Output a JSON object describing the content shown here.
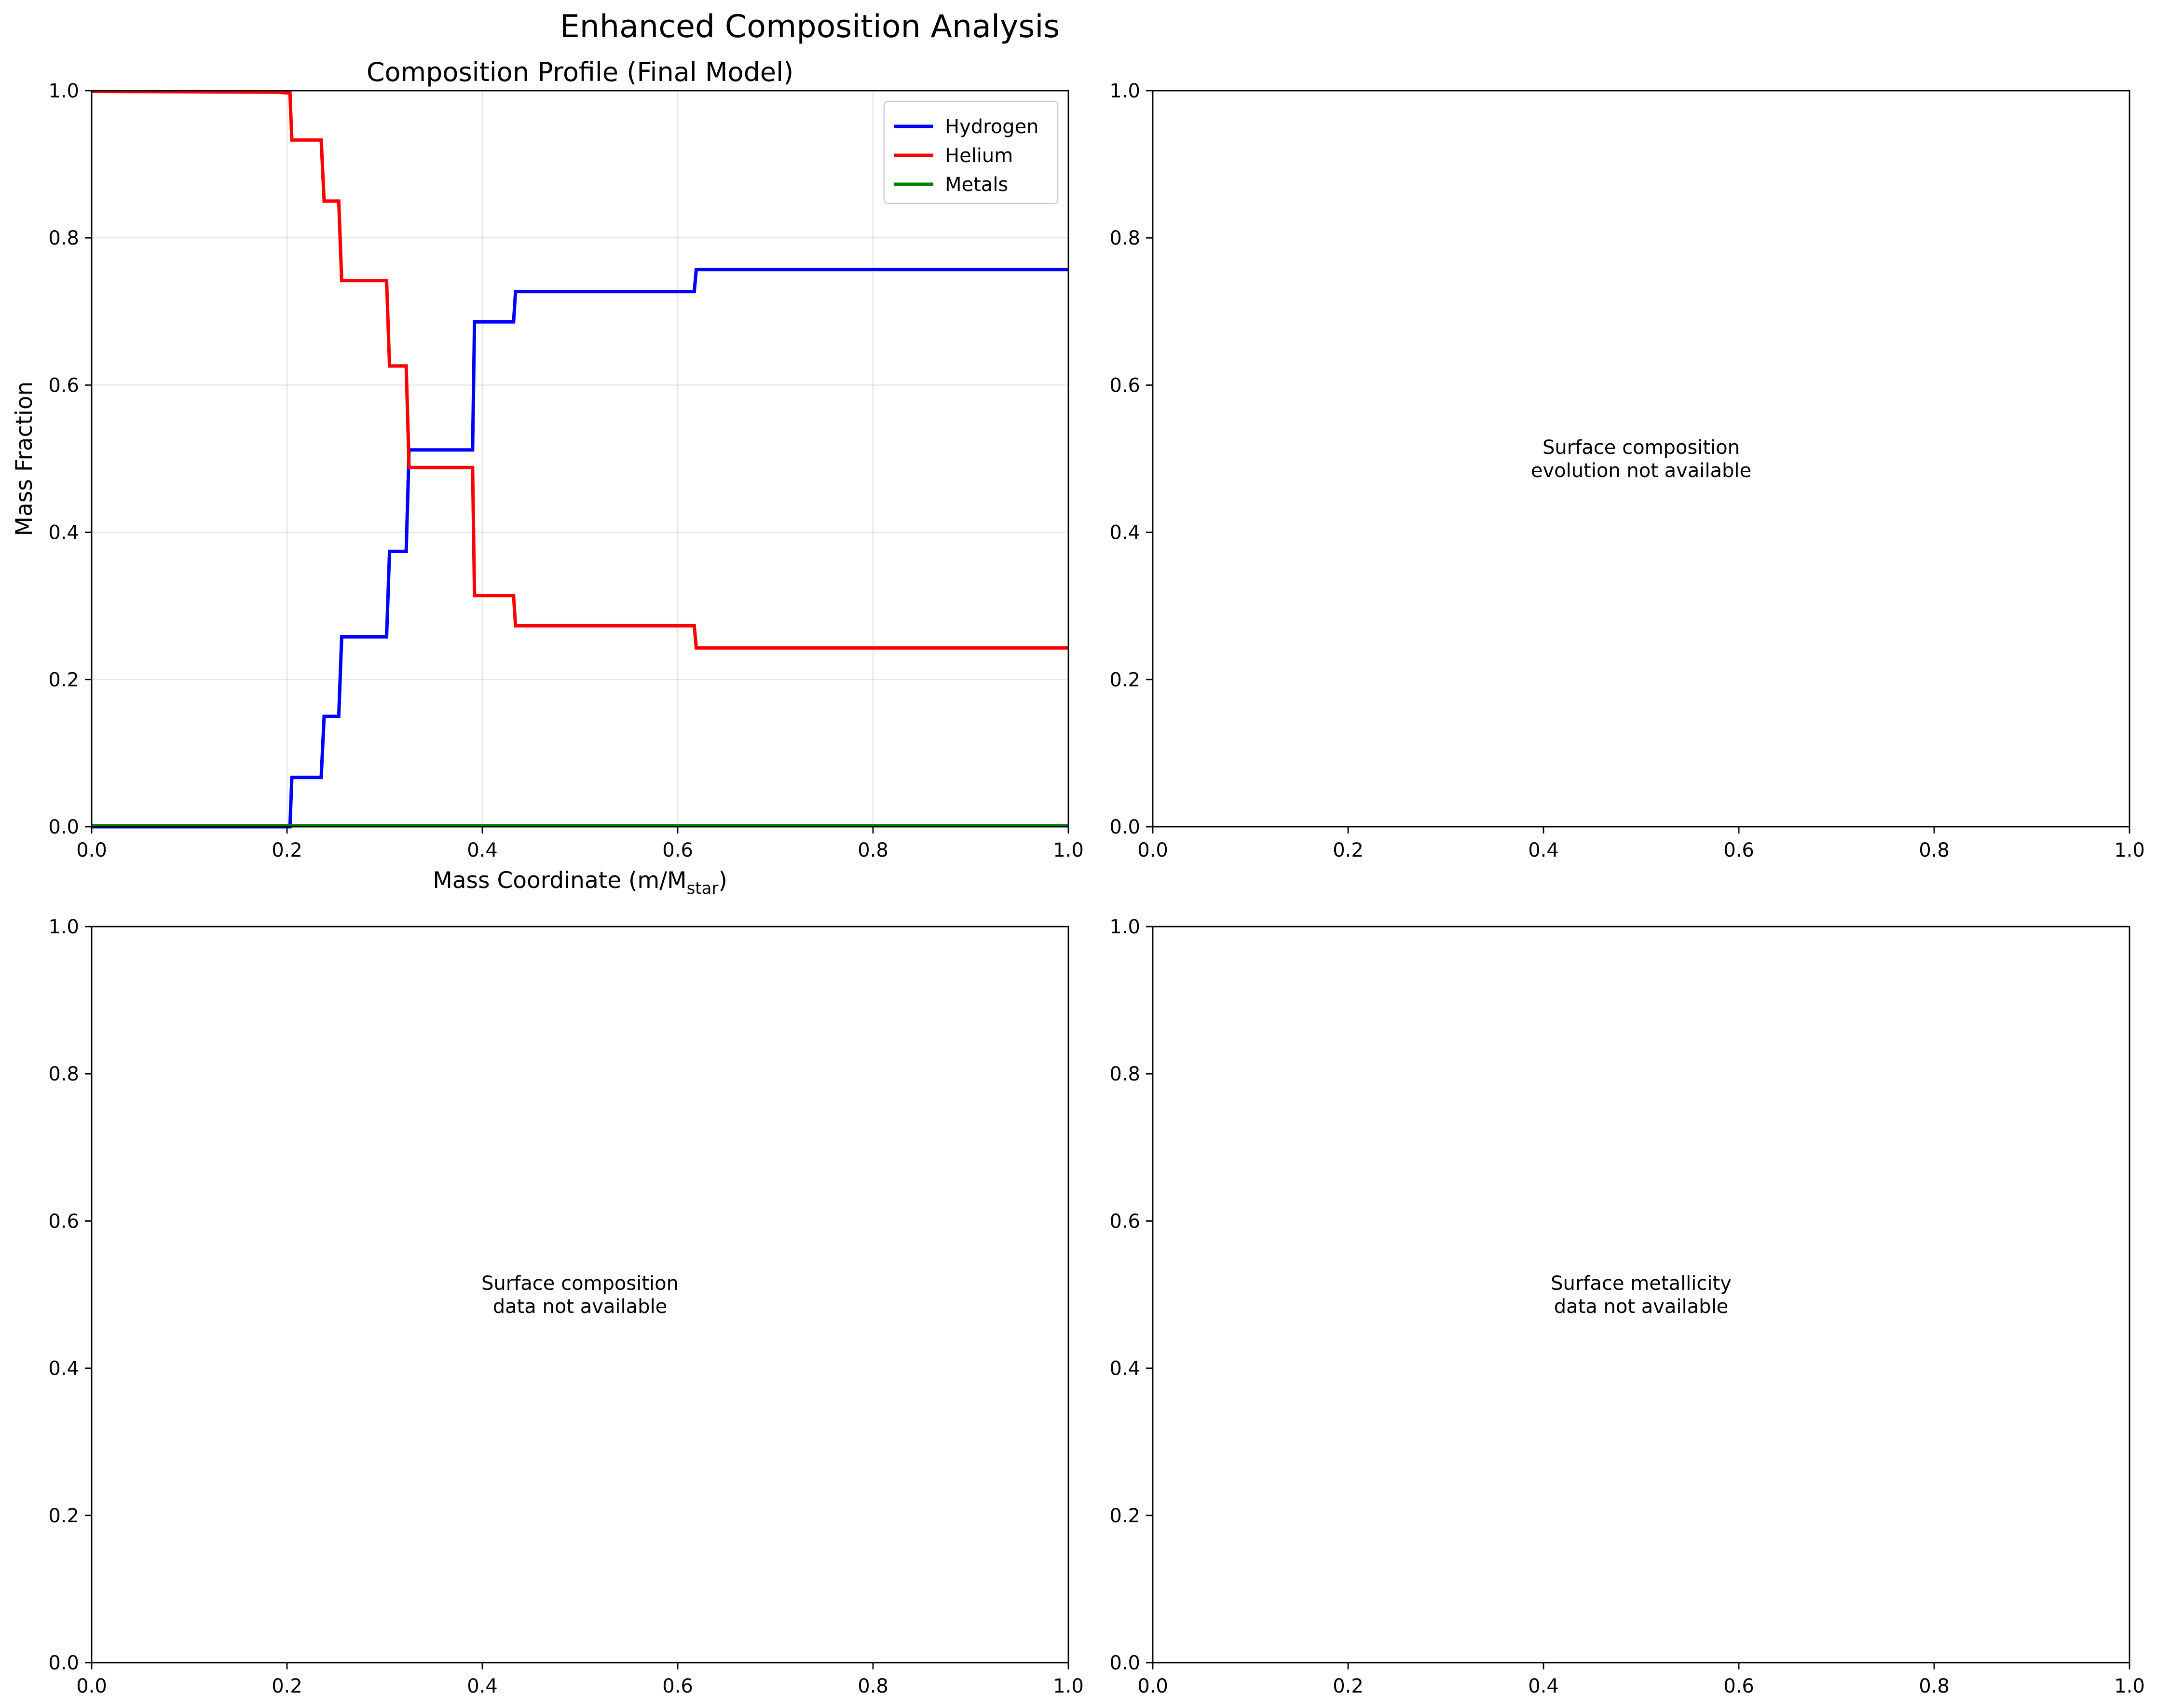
{
  "suptitle": "Enhanced Composition Analysis",
  "chart_data": [
    {
      "type": "line",
      "title": "Composition Profile (Final Model)",
      "xlabel": "Mass Coordinate (m/M",
      "xlabel_sub": "star",
      "xlabel_end": ")",
      "ylabel": "Mass Fraction",
      "xlim": [
        0,
        1
      ],
      "ylim": [
        0,
        1
      ],
      "xticks": [
        "0.0",
        "0.2",
        "0.4",
        "0.6",
        "0.8",
        "1.0"
      ],
      "yticks": [
        "0.0",
        "0.2",
        "0.4",
        "0.6",
        "0.8",
        "1.0"
      ],
      "grid": true,
      "legend": "top-right",
      "series": [
        {
          "name": "Hydrogen",
          "color": "#0000ff",
          "x": [
            0,
            0.2,
            0.203,
            0.205,
            0.235,
            0.238,
            0.253,
            0.256,
            0.302,
            0.305,
            0.322,
            0.325,
            0.39,
            0.392,
            0.432,
            0.434,
            0.617,
            0.619,
            1.0
          ],
          "y": [
            0,
            0,
            0.0,
            0.067,
            0.067,
            0.15,
            0.15,
            0.258,
            0.258,
            0.374,
            0.374,
            0.512,
            0.512,
            0.686,
            0.686,
            0.727,
            0.727,
            0.757,
            0.757
          ]
        },
        {
          "name": "Helium",
          "color": "#ff0000",
          "x": [
            0,
            0.19,
            0.2,
            0.203,
            0.205,
            0.235,
            0.238,
            0.253,
            0.256,
            0.302,
            0.305,
            0.322,
            0.325,
            0.39,
            0.392,
            0.432,
            0.434,
            0.617,
            0.619,
            1.0
          ],
          "y": [
            0.999,
            0.998,
            0.997,
            0.997,
            0.933,
            0.933,
            0.85,
            0.85,
            0.742,
            0.742,
            0.626,
            0.626,
            0.488,
            0.488,
            0.314,
            0.314,
            0.273,
            0.273,
            0.243,
            0.243
          ]
        },
        {
          "name": "Metals",
          "color": "#008000",
          "x": [
            0,
            1.0
          ],
          "y": [
            0.0015,
            0.0015
          ]
        }
      ]
    },
    {
      "type": "line",
      "title": "",
      "xlim": [
        0,
        1
      ],
      "ylim": [
        0,
        1
      ],
      "xticks": [
        "0.0",
        "0.2",
        "0.4",
        "0.6",
        "0.8",
        "1.0"
      ],
      "yticks": [
        "0.0",
        "0.2",
        "0.4",
        "0.6",
        "0.8",
        "1.0"
      ],
      "annotation": [
        "Surface composition",
        "evolution not available"
      ]
    },
    {
      "type": "line",
      "title": "",
      "xlim": [
        0,
        1
      ],
      "ylim": [
        0,
        1
      ],
      "xticks": [
        "0.0",
        "0.2",
        "0.4",
        "0.6",
        "0.8",
        "1.0"
      ],
      "yticks": [
        "0.0",
        "0.2",
        "0.4",
        "0.6",
        "0.8",
        "1.0"
      ],
      "annotation": [
        "Surface composition",
        "data not available"
      ]
    },
    {
      "type": "line",
      "title": "",
      "xlim": [
        0,
        1
      ],
      "ylim": [
        0,
        1
      ],
      "xticks": [
        "0.0",
        "0.2",
        "0.4",
        "0.6",
        "0.8",
        "1.0"
      ],
      "yticks": [
        "0.0",
        "0.2",
        "0.4",
        "0.6",
        "0.8",
        "1.0"
      ],
      "annotation": [
        "Surface metallicity",
        "data not available"
      ]
    }
  ]
}
